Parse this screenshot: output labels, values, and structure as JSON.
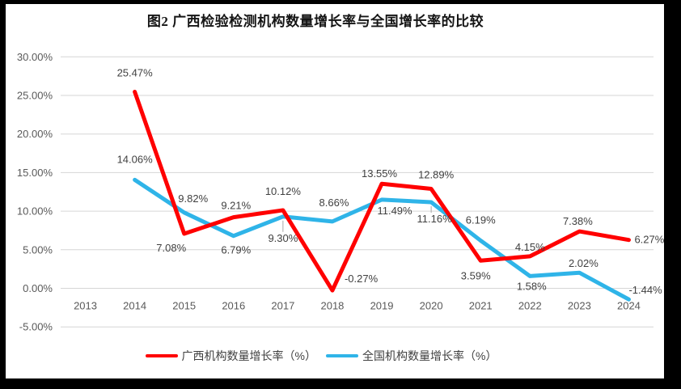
{
  "title": "图2 广西检验检测机构数量增长率与全国增长率的比较",
  "colors": {
    "frame": "#000000",
    "background": "#FFFFFF",
    "grid": "#D6D6D6",
    "axis_text": "#595959",
    "label_text": "#404040",
    "leader": "#A6A6A6",
    "series_guangxi": "#FF0000",
    "series_national": "#2FB4E8"
  },
  "chart_data": {
    "type": "line",
    "title": "图2 广西检验检测机构数量增长率与全国增长率的比较",
    "xlabel": "",
    "ylabel": "",
    "grid": true,
    "legend_position": "bottom",
    "ylim": [
      -5,
      30
    ],
    "ytick_step": 5,
    "yticks": [
      {
        "value": 30,
        "label": "30.00%"
      },
      {
        "value": 25,
        "label": "25.00%"
      },
      {
        "value": 20,
        "label": "20.00%"
      },
      {
        "value": 15,
        "label": "15.00%"
      },
      {
        "value": 10,
        "label": "10.00%"
      },
      {
        "value": 5,
        "label": "5.00%"
      },
      {
        "value": 0,
        "label": "0.00%"
      },
      {
        "value": -5,
        "label": "-5.00%"
      }
    ],
    "categories": [
      "2013",
      "2014",
      "2015",
      "2016",
      "2017",
      "2018",
      "2019",
      "2020",
      "2021",
      "2022",
      "2023",
      "2024"
    ],
    "series": [
      {
        "name": "广西机构数量增长率（%）",
        "color": "#FF0000",
        "values": [
          null,
          25.47,
          7.08,
          9.21,
          10.12,
          -0.27,
          13.55,
          12.89,
          3.59,
          4.15,
          7.38,
          6.27
        ],
        "labels": [
          null,
          {
            "text": "25.47%",
            "dx": 0,
            "dy": -19,
            "anchor": "middle"
          },
          {
            "text": "7.08%",
            "dx": -16,
            "dy": 22,
            "anchor": "middle"
          },
          {
            "text": "9.21%",
            "dx": 3,
            "dy": -10,
            "anchor": "middle"
          },
          {
            "text": "10.12%",
            "dx": 0,
            "dy": -19,
            "anchor": "middle"
          },
          {
            "text": "-0.27%",
            "dx": 15,
            "dy": -10,
            "anchor": "start"
          },
          {
            "text": "13.55%",
            "dx": -3,
            "dy": -8,
            "anchor": "middle"
          },
          {
            "text": "12.89%",
            "dx": 6,
            "dy": -13,
            "anchor": "middle"
          },
          {
            "text": "3.59%",
            "dx": -6,
            "dy": 23,
            "anchor": "middle"
          },
          {
            "text": "4.15%",
            "dx": 0,
            "dy": -7,
            "anchor": "middle"
          },
          {
            "text": "7.38%",
            "dx": -2,
            "dy": -8,
            "anchor": "middle"
          },
          {
            "text": "6.27%",
            "dx": 7,
            "dy": 4,
            "anchor": "start"
          }
        ]
      },
      {
        "name": "全国机构数量增长率（%）",
        "color": "#2FB4E8",
        "values": [
          null,
          14.06,
          9.82,
          6.79,
          9.3,
          8.66,
          11.49,
          11.16,
          6.19,
          1.58,
          2.02,
          -1.44
        ],
        "labels": [
          null,
          {
            "text": "14.06%",
            "dx": 0,
            "dy": -21,
            "anchor": "middle"
          },
          {
            "text": "9.82%",
            "dx": 11,
            "dy": -13,
            "anchor": "middle"
          },
          {
            "text": "6.79%",
            "dx": 3,
            "dy": 22,
            "anchor": "middle"
          },
          {
            "text": "9.30%",
            "dx": 0,
            "dy": 31,
            "anchor": "middle",
            "leader": true
          },
          {
            "text": "8.66%",
            "dx": 2,
            "dy": -19,
            "anchor": "middle"
          },
          {
            "text": "11.49%",
            "dx": 16,
            "dy": 18,
            "anchor": "middle"
          },
          {
            "text": "11.16%",
            "dx": 4,
            "dy": 25,
            "anchor": "middle",
            "leader": true
          },
          {
            "text": "6.19%",
            "dx": 0,
            "dy": -21,
            "anchor": "middle"
          },
          {
            "text": "1.58%",
            "dx": 2,
            "dy": 17,
            "anchor": "middle"
          },
          {
            "text": "2.02%",
            "dx": 5,
            "dy": -7,
            "anchor": "middle"
          },
          {
            "text": "-1.44%",
            "dx": 0,
            "dy": -7,
            "anchor": "start"
          }
        ]
      }
    ]
  }
}
